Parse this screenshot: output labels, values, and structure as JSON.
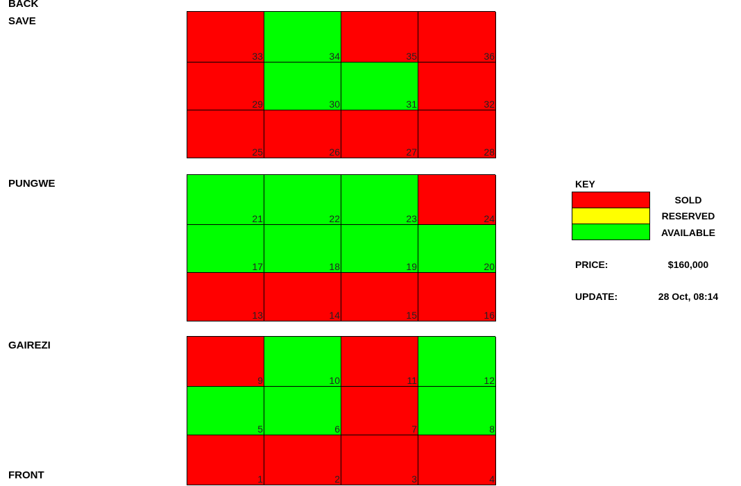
{
  "labels": {
    "back": "BACK",
    "save": "SAVE",
    "pungwe": "PUNGWE",
    "gairezi": "GAIREZI",
    "front": "FRONT"
  },
  "status_colors": {
    "sold": "#ff0000",
    "reserved": "#ffff00",
    "available": "#00ff00"
  },
  "blocks": [
    {
      "rows": [
        [
          {
            "num": "33",
            "status": "sold"
          },
          {
            "num": "34",
            "status": "available"
          },
          {
            "num": "35",
            "status": "sold"
          },
          {
            "num": "36",
            "status": "sold"
          }
        ],
        [
          {
            "num": "29",
            "status": "sold"
          },
          {
            "num": "30",
            "status": "available"
          },
          {
            "num": "31",
            "status": "available"
          },
          {
            "num": "32",
            "status": "sold"
          }
        ],
        [
          {
            "num": "25",
            "status": "sold"
          },
          {
            "num": "26",
            "status": "sold"
          },
          {
            "num": "27",
            "status": "sold"
          },
          {
            "num": "28",
            "status": "sold"
          }
        ]
      ]
    },
    {
      "rows": [
        [
          {
            "num": "21",
            "status": "available"
          },
          {
            "num": "22",
            "status": "available"
          },
          {
            "num": "23",
            "status": "available"
          },
          {
            "num": "24",
            "status": "sold"
          }
        ],
        [
          {
            "num": "17",
            "status": "available"
          },
          {
            "num": "18",
            "status": "available"
          },
          {
            "num": "19",
            "status": "available"
          },
          {
            "num": "20",
            "status": "available"
          }
        ],
        [
          {
            "num": "13",
            "status": "sold"
          },
          {
            "num": "14",
            "status": "sold"
          },
          {
            "num": "15",
            "status": "sold"
          },
          {
            "num": "16",
            "status": "sold"
          }
        ]
      ]
    },
    {
      "rows": [
        [
          {
            "num": "9",
            "status": "sold"
          },
          {
            "num": "10",
            "status": "available"
          },
          {
            "num": "11",
            "status": "sold"
          },
          {
            "num": "12",
            "status": "available"
          }
        ],
        [
          {
            "num": "5",
            "status": "available"
          },
          {
            "num": "6",
            "status": "available"
          },
          {
            "num": "7",
            "status": "sold"
          },
          {
            "num": "8",
            "status": "available"
          }
        ],
        [
          {
            "num": "1",
            "status": "sold"
          },
          {
            "num": "2",
            "status": "sold"
          },
          {
            "num": "3",
            "status": "sold"
          },
          {
            "num": "4",
            "status": "sold"
          }
        ]
      ]
    }
  ],
  "key": {
    "title": "KEY",
    "sold": "SOLD",
    "reserved": "RESERVED",
    "available": "AVAILABLE"
  },
  "info": {
    "price_label": "PRICE:",
    "price_value": "$160,000",
    "update_label": "UPDATE:",
    "update_value": "28 Oct, 08:14"
  }
}
